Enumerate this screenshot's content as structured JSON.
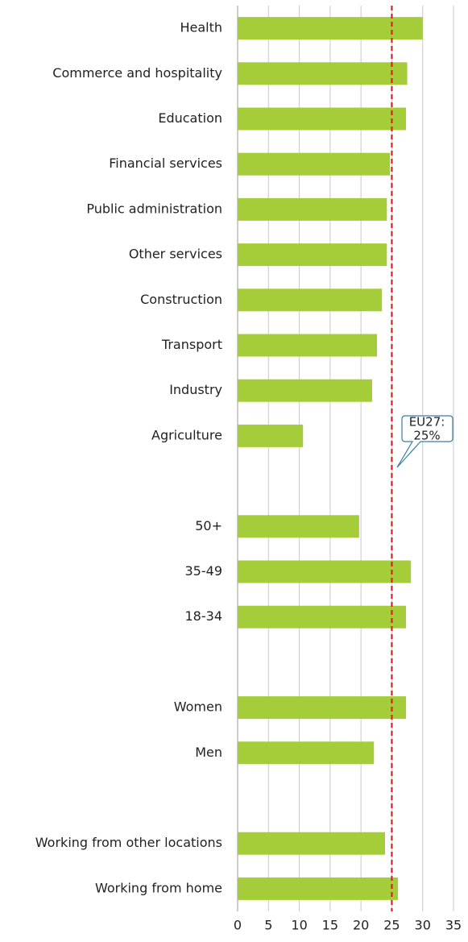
{
  "chart_data": {
    "type": "bar",
    "orientation": "horizontal",
    "categories": [
      "Health",
      "Commerce and hospitality",
      "Education",
      "Financial services",
      "Public administration",
      "Other services",
      "Construction",
      "Transport",
      "Industry",
      "Agriculture",
      null,
      "50+",
      "35-49",
      "18-34",
      null,
      "Women",
      "Men",
      null,
      "Working from other locations",
      "Working from home"
    ],
    "values": [
      30,
      27.5,
      27.3,
      24.7,
      24.2,
      24.2,
      23.4,
      22.6,
      21.8,
      10.6,
      null,
      19.7,
      28.1,
      27.3,
      null,
      27.3,
      22.1,
      null,
      23.9,
      26
    ],
    "color": "#a5cd39",
    "xlim": [
      0,
      35
    ],
    "xticks": [
      0,
      5,
      10,
      15,
      20,
      25,
      30,
      35
    ],
    "grid": true,
    "reference": {
      "value": 25,
      "color": "#e02020",
      "label_lines": [
        "EU27:",
        "25%"
      ]
    }
  }
}
